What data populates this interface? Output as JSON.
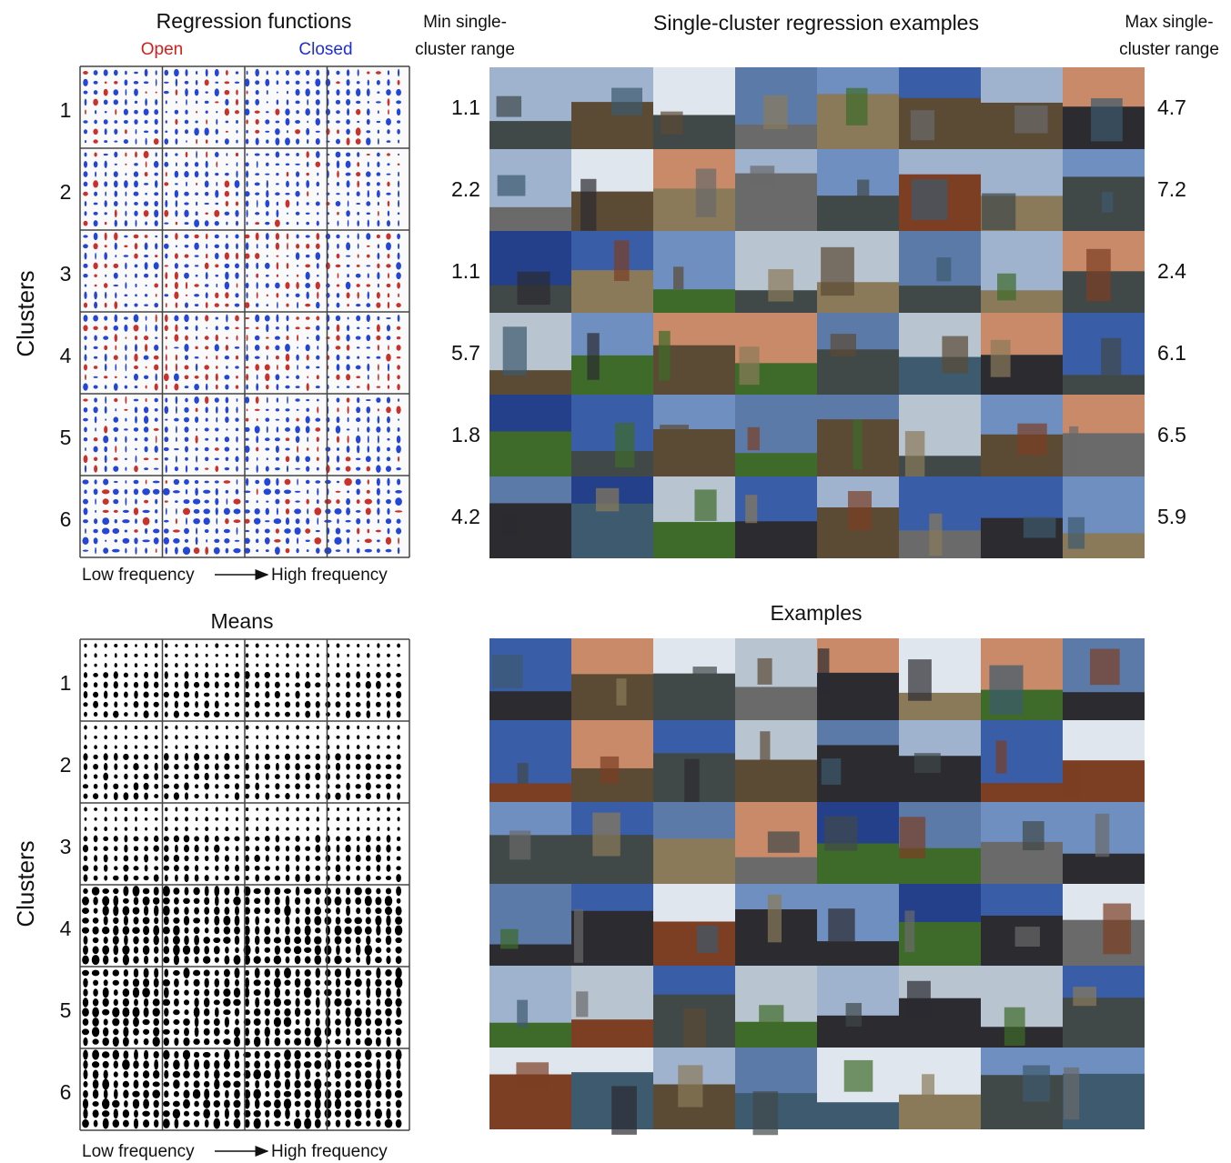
{
  "regression_panel": {
    "title": "Regression functions",
    "legend": {
      "open": "Open",
      "closed": "Closed"
    },
    "y_label": "Clusters",
    "clusters": [
      "1",
      "2",
      "3",
      "4",
      "5",
      "6"
    ],
    "x_axis": {
      "low": "Low frequency",
      "high": "High frequency"
    }
  },
  "single_cluster_examples": {
    "title": "Single-cluster regression examples",
    "min_label": [
      "Min single-",
      "cluster range"
    ],
    "max_label": [
      "Max single-",
      "cluster range"
    ],
    "min_range": [
      1.1,
      2.2,
      1.1,
      5.7,
      1.8,
      4.2
    ],
    "max_range": [
      4.7,
      7.2,
      2.4,
      6.1,
      6.5,
      5.9
    ]
  },
  "means_panel": {
    "title": "Means",
    "y_label": "Clusters",
    "clusters": [
      "1",
      "2",
      "3",
      "4",
      "5",
      "6"
    ],
    "x_axis": {
      "low": "Low frequency",
      "high": "High frequency"
    }
  },
  "examples_panel": {
    "title": "Examples"
  }
}
